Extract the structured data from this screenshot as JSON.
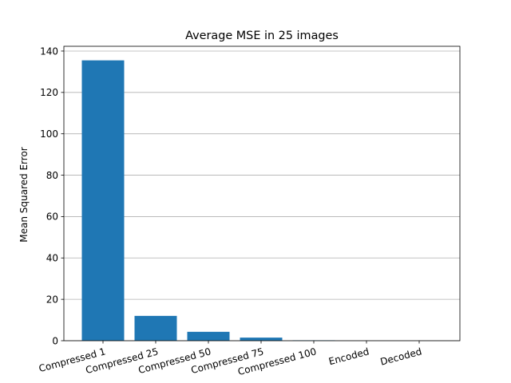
{
  "chart_data": {
    "type": "bar",
    "title": "Average MSE in 25 images",
    "xlabel": "",
    "ylabel": "Mean Squared Error",
    "categories": [
      "Compressed 1",
      "Compressed 25",
      "Compressed 50",
      "Compressed 75",
      "Compressed 100",
      "Encoded",
      "Decoded"
    ],
    "values": [
      135.5,
      12.0,
      4.3,
      1.5,
      0.2,
      0.0,
      0.0
    ],
    "ylim": [
      0,
      142.3
    ],
    "yticks": [
      0,
      20,
      40,
      60,
      80,
      100,
      120,
      140
    ],
    "grid": "y",
    "bar_color": "#1f77b4",
    "legend": "none"
  }
}
